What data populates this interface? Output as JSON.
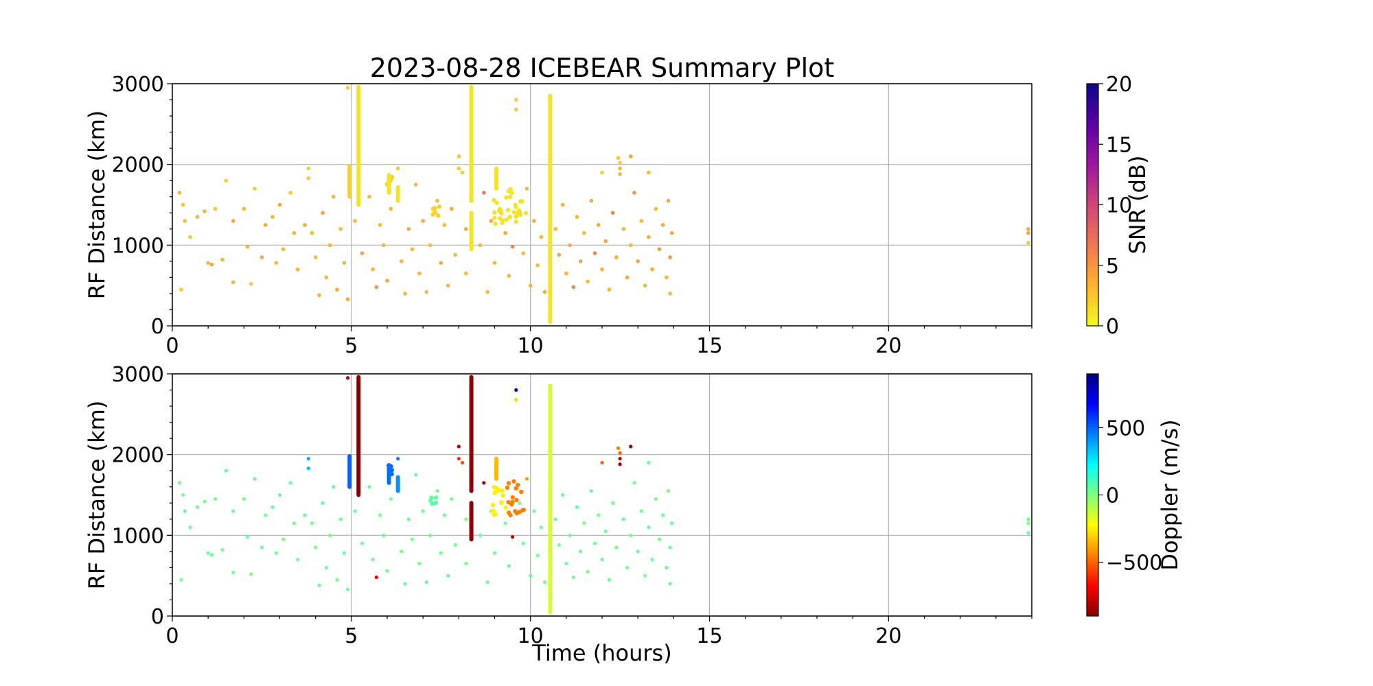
{
  "chart_data": {
    "type": "scatter",
    "title": "2023-08-28 ICEBEAR Summary Plot",
    "xlabel": "Time (hours)",
    "xlim": [
      0,
      24
    ],
    "x_ticks": [
      0,
      5,
      10,
      15,
      20
    ],
    "x_tick_labels": [
      "0",
      "5",
      "10",
      "15",
      "20"
    ],
    "grid": true,
    "panels": [
      {
        "ylabel": "RF Distance (km)",
        "ylim": [
          0,
          3000
        ],
        "y_ticks": [
          0,
          1000,
          2000,
          3000
        ],
        "y_tick_labels": [
          "0",
          "1000",
          "2000",
          "3000"
        ],
        "color_by": "snr",
        "colorbar": {
          "label": "SNR (dB)",
          "range": [
            0,
            20
          ],
          "ticks": [
            0,
            5,
            10,
            15,
            20
          ],
          "tick_labels": [
            "0",
            "5",
            "10",
            "15",
            "20"
          ],
          "colormap": "plasma_r",
          "stops": [
            "#f0f921",
            "#fdb42f",
            "#ed7953",
            "#cc4778",
            "#9c179e",
            "#5c01a6",
            "#0d0887"
          ]
        }
      },
      {
        "ylabel": "RF Distance (km)",
        "ylim": [
          0,
          3000
        ],
        "y_ticks": [
          0,
          1000,
          2000,
          3000
        ],
        "y_tick_labels": [
          "0",
          "1000",
          "2000",
          "3000"
        ],
        "color_by": "doppler",
        "colorbar": {
          "label": "Doppler (m/s)",
          "range": [
            -900,
            900
          ],
          "ticks": [
            -500,
            0,
            500
          ],
          "tick_labels": [
            "−500",
            "0",
            "500"
          ],
          "colormap": "jet_r",
          "stops": [
            "#800000",
            "#ff0000",
            "#ff8000",
            "#ffff00",
            "#80ff80",
            "#00ffff",
            "#0080ff",
            "#0000ff",
            "#000080"
          ]
        }
      }
    ],
    "points": [
      {
        "t": 0.2,
        "r": 1650,
        "snr": 3,
        "dop": 30
      },
      {
        "t": 0.3,
        "r": 1500,
        "snr": 2,
        "dop": 20
      },
      {
        "t": 0.35,
        "r": 1300,
        "snr": 3,
        "dop": 40
      },
      {
        "t": 0.25,
        "r": 450,
        "snr": 2,
        "dop": 30
      },
      {
        "t": 0.5,
        "r": 1100,
        "snr": 2,
        "dop": 10
      },
      {
        "t": 0.7,
        "r": 1350,
        "snr": 3,
        "dop": 50
      },
      {
        "t": 0.9,
        "r": 1420,
        "snr": 3,
        "dop": 20
      },
      {
        "t": 1.0,
        "r": 780,
        "snr": 3,
        "dop": 30
      },
      {
        "t": 1.1,
        "r": 760,
        "snr": 4,
        "dop": 40
      },
      {
        "t": 1.2,
        "r": 1450,
        "snr": 2,
        "dop": 10
      },
      {
        "t": 1.4,
        "r": 820,
        "snr": 3,
        "dop": 30
      },
      {
        "t": 1.5,
        "r": 1800,
        "snr": 2,
        "dop": 60
      },
      {
        "t": 1.7,
        "r": 540,
        "snr": 3,
        "dop": 20
      },
      {
        "t": 1.7,
        "r": 1300,
        "snr": 4,
        "dop": 30
      },
      {
        "t": 2.0,
        "r": 1450,
        "snr": 3,
        "dop": 20
      },
      {
        "t": 2.1,
        "r": 980,
        "snr": 3,
        "dop": 40
      },
      {
        "t": 2.2,
        "r": 520,
        "snr": 2,
        "dop": 10
      },
      {
        "t": 2.3,
        "r": 1700,
        "snr": 2,
        "dop": 50
      },
      {
        "t": 2.5,
        "r": 850,
        "snr": 4,
        "dop": 30
      },
      {
        "t": 2.6,
        "r": 1250,
        "snr": 4,
        "dop": 20
      },
      {
        "t": 2.8,
        "r": 1350,
        "snr": 3,
        "dop": 40
      },
      {
        "t": 2.9,
        "r": 780,
        "snr": 3,
        "dop": 30
      },
      {
        "t": 3.0,
        "r": 1500,
        "snr": 4,
        "dop": 30
      },
      {
        "t": 3.1,
        "r": 950,
        "snr": 3,
        "dop": 20
      },
      {
        "t": 3.3,
        "r": 1650,
        "snr": 2,
        "dop": 60
      },
      {
        "t": 3.4,
        "r": 1150,
        "snr": 3,
        "dop": 30
      },
      {
        "t": 3.5,
        "r": 700,
        "snr": 3,
        "dop": 20
      },
      {
        "t": 3.7,
        "r": 1250,
        "snr": 4,
        "dop": 40
      },
      {
        "t": 3.8,
        "r": 1950,
        "snr": 2,
        "dop": 380
      },
      {
        "t": 3.8,
        "r": 1830,
        "snr": 2,
        "dop": 350
      },
      {
        "t": 3.9,
        "r": 1150,
        "snr": 3,
        "dop": 30
      },
      {
        "t": 4.0,
        "r": 850,
        "snr": 3,
        "dop": 20
      },
      {
        "t": 4.1,
        "r": 380,
        "snr": 3,
        "dop": 30
      },
      {
        "t": 4.2,
        "r": 1400,
        "snr": 4,
        "dop": 40
      },
      {
        "t": 4.3,
        "r": 600,
        "snr": 3,
        "dop": 30
      },
      {
        "t": 4.4,
        "r": 1000,
        "snr": 3,
        "dop": 20
      },
      {
        "t": 4.5,
        "r": 1600,
        "snr": 3,
        "dop": 50
      },
      {
        "t": 4.6,
        "r": 450,
        "snr": 4,
        "dop": 30
      },
      {
        "t": 4.7,
        "r": 1200,
        "snr": 3,
        "dop": 20
      },
      {
        "t": 4.8,
        "r": 780,
        "snr": 3,
        "dop": 40
      },
      {
        "t": 4.9,
        "r": 330,
        "snr": 4,
        "dop": 30
      },
      {
        "t": 4.9,
        "r": 2950,
        "snr": 2,
        "dop": -850
      },
      {
        "t": 5.1,
        "r": 1300,
        "snr": 3,
        "dop": 30
      },
      {
        "t": 5.3,
        "r": 900,
        "snr": 4,
        "dop": 20
      },
      {
        "t": 5.5,
        "r": 1600,
        "snr": 3,
        "dop": 50
      },
      {
        "t": 5.6,
        "r": 700,
        "snr": 3,
        "dop": 30
      },
      {
        "t": 5.7,
        "r": 480,
        "snr": 5,
        "dop": -700
      },
      {
        "t": 5.8,
        "r": 1250,
        "snr": 3,
        "dop": 20
      },
      {
        "t": 5.9,
        "r": 1000,
        "snr": 3,
        "dop": 40
      },
      {
        "t": 6.0,
        "r": 560,
        "snr": 4,
        "dop": 30
      },
      {
        "t": 6.1,
        "r": 1450,
        "snr": 3,
        "dop": 20
      },
      {
        "t": 6.3,
        "r": 1950,
        "snr": 2,
        "dop": 450
      },
      {
        "t": 6.4,
        "r": 800,
        "snr": 3,
        "dop": 30
      },
      {
        "t": 6.5,
        "r": 400,
        "snr": 3,
        "dop": 40
      },
      {
        "t": 6.6,
        "r": 1200,
        "snr": 4,
        "dop": 30
      },
      {
        "t": 6.7,
        "r": 950,
        "snr": 3,
        "dop": 20
      },
      {
        "t": 6.8,
        "r": 1750,
        "snr": 3,
        "dop": 50
      },
      {
        "t": 6.9,
        "r": 650,
        "snr": 3,
        "dop": 30
      },
      {
        "t": 7.0,
        "r": 1300,
        "snr": 4,
        "dop": 20
      },
      {
        "t": 7.1,
        "r": 420,
        "snr": 3,
        "dop": 40
      },
      {
        "t": 7.2,
        "r": 1000,
        "snr": 3,
        "dop": 30
      },
      {
        "t": 7.4,
        "r": 1550,
        "snr": 3,
        "dop": 20
      },
      {
        "t": 7.5,
        "r": 780,
        "snr": 4,
        "dop": 30
      },
      {
        "t": 7.6,
        "r": 1250,
        "snr": 3,
        "dop": 40
      },
      {
        "t": 7.7,
        "r": 500,
        "snr": 3,
        "dop": 30
      },
      {
        "t": 7.8,
        "r": 1450,
        "snr": 4,
        "dop": 20
      },
      {
        "t": 7.9,
        "r": 880,
        "snr": 3,
        "dop": 30
      },
      {
        "t": 8.0,
        "r": 2100,
        "snr": 2,
        "dop": -820
      },
      {
        "t": 8.0,
        "r": 1950,
        "snr": 2,
        "dop": -600
      },
      {
        "t": 8.1,
        "r": 1900,
        "snr": 2,
        "dop": -550
      },
      {
        "t": 8.2,
        "r": 650,
        "snr": 3,
        "dop": 30
      },
      {
        "t": 8.2,
        "r": 1200,
        "snr": 4,
        "dop": 20
      },
      {
        "t": 8.6,
        "r": 1000,
        "snr": 3,
        "dop": 40
      },
      {
        "t": 8.7,
        "r": 1650,
        "snr": 7,
        "dop": -850
      },
      {
        "t": 8.8,
        "r": 420,
        "snr": 3,
        "dop": 30
      },
      {
        "t": 8.9,
        "r": 1300,
        "snr": 4,
        "dop": 20
      },
      {
        "t": 9.0,
        "r": 780,
        "snr": 3,
        "dop": 30
      },
      {
        "t": 9.3,
        "r": 1150,
        "snr": 4,
        "dop": 40
      },
      {
        "t": 9.4,
        "r": 620,
        "snr": 3,
        "dop": 30
      },
      {
        "t": 9.5,
        "r": 980,
        "snr": 6,
        "dop": -800
      },
      {
        "t": 9.6,
        "r": 2800,
        "snr": 2,
        "dop": 850
      },
      {
        "t": 9.6,
        "r": 2680,
        "snr": 2,
        "dop": -300
      },
      {
        "t": 9.7,
        "r": 1400,
        "snr": 3,
        "dop": 20
      },
      {
        "t": 9.8,
        "r": 900,
        "snr": 3,
        "dop": 30
      },
      {
        "t": 9.9,
        "r": 1700,
        "snr": 3,
        "dop": -400
      },
      {
        "t": 10.0,
        "r": 500,
        "snr": 3,
        "dop": 40
      },
      {
        "t": 10.1,
        "r": 1300,
        "snr": 4,
        "dop": 30
      },
      {
        "t": 10.2,
        "r": 750,
        "snr": 3,
        "dop": 20
      },
      {
        "t": 10.3,
        "r": 1100,
        "snr": 3,
        "dop": 30
      },
      {
        "t": 10.4,
        "r": 420,
        "snr": 4,
        "dop": 40
      },
      {
        "t": 10.7,
        "r": 1200,
        "snr": 3,
        "dop": 30
      },
      {
        "t": 10.8,
        "r": 880,
        "snr": 4,
        "dop": 20
      },
      {
        "t": 10.9,
        "r": 1500,
        "snr": 3,
        "dop": 40
      },
      {
        "t": 11.0,
        "r": 650,
        "snr": 3,
        "dop": 30
      },
      {
        "t": 11.1,
        "r": 1000,
        "snr": 4,
        "dop": 20
      },
      {
        "t": 11.2,
        "r": 480,
        "snr": 6,
        "dop": 30
      },
      {
        "t": 11.3,
        "r": 1350,
        "snr": 3,
        "dop": 40
      },
      {
        "t": 11.4,
        "r": 800,
        "snr": 4,
        "dop": 30
      },
      {
        "t": 11.5,
        "r": 1150,
        "snr": 3,
        "dop": 20
      },
      {
        "t": 11.6,
        "r": 550,
        "snr": 3,
        "dop": 30
      },
      {
        "t": 11.7,
        "r": 1550,
        "snr": 4,
        "dop": 40
      },
      {
        "t": 11.8,
        "r": 900,
        "snr": 6,
        "dop": 30
      },
      {
        "t": 11.9,
        "r": 1250,
        "snr": 4,
        "dop": 20
      },
      {
        "t": 12.0,
        "r": 700,
        "snr": 3,
        "dop": 30
      },
      {
        "t": 12.0,
        "r": 1900,
        "snr": 2,
        "dop": -500
      },
      {
        "t": 12.1,
        "r": 1050,
        "snr": 4,
        "dop": 40
      },
      {
        "t": 12.2,
        "r": 450,
        "snr": 3,
        "dop": 30
      },
      {
        "t": 12.3,
        "r": 1400,
        "snr": 6,
        "dop": 20
      },
      {
        "t": 12.4,
        "r": 850,
        "snr": 4,
        "dop": 30
      },
      {
        "t": 12.45,
        "r": 2080,
        "snr": 2,
        "dop": -450
      },
      {
        "t": 12.5,
        "r": 2020,
        "snr": 2,
        "dop": -500
      },
      {
        "t": 12.5,
        "r": 1950,
        "snr": 3,
        "dop": -800
      },
      {
        "t": 12.5,
        "r": 1880,
        "snr": 3,
        "dop": -850
      },
      {
        "t": 12.6,
        "r": 1200,
        "snr": 3,
        "dop": 40
      },
      {
        "t": 12.7,
        "r": 600,
        "snr": 4,
        "dop": 30
      },
      {
        "t": 12.8,
        "r": 2100,
        "snr": 4,
        "dop": -850
      },
      {
        "t": 12.8,
        "r": 1000,
        "snr": 3,
        "dop": 20
      },
      {
        "t": 12.9,
        "r": 1650,
        "snr": 5,
        "dop": 30
      },
      {
        "t": 13.0,
        "r": 800,
        "snr": 4,
        "dop": 40
      },
      {
        "t": 13.1,
        "r": 1300,
        "snr": 3,
        "dop": 30
      },
      {
        "t": 13.2,
        "r": 500,
        "snr": 3,
        "dop": 20
      },
      {
        "t": 13.3,
        "r": 1900,
        "snr": 3,
        "dop": 30
      },
      {
        "t": 13.3,
        "r": 1100,
        "snr": 4,
        "dop": 40
      },
      {
        "t": 13.4,
        "r": 700,
        "snr": 4,
        "dop": 30
      },
      {
        "t": 13.5,
        "r": 1450,
        "snr": 3,
        "dop": 20
      },
      {
        "t": 13.6,
        "r": 950,
        "snr": 5,
        "dop": 30
      },
      {
        "t": 13.7,
        "r": 1250,
        "snr": 4,
        "dop": 40
      },
      {
        "t": 13.8,
        "r": 600,
        "snr": 3,
        "dop": 30
      },
      {
        "t": 13.85,
        "r": 1550,
        "snr": 4,
        "dop": 20
      },
      {
        "t": 13.9,
        "r": 850,
        "snr": 5,
        "dop": 30
      },
      {
        "t": 13.95,
        "r": 1150,
        "snr": 4,
        "dop": 40
      },
      {
        "t": 13.9,
        "r": 400,
        "snr": 3,
        "dop": 30
      },
      {
        "t": 23.9,
        "r": 1200,
        "snr": 4,
        "dop": 30
      },
      {
        "t": 23.9,
        "r": 1150,
        "snr": 4,
        "dop": 20
      },
      {
        "t": 23.9,
        "r": 1030,
        "snr": 2,
        "dop": 30
      }
    ],
    "streaks": [
      {
        "t": 4.95,
        "r_from": 1600,
        "r_to": 1980,
        "snr": 2,
        "dop": 500
      },
      {
        "t": 5.2,
        "r_from": 1500,
        "r_to": 2960,
        "snr": 1,
        "dop": -880
      },
      {
        "t": 8.35,
        "r_from": 1550,
        "r_to": 2960,
        "snr": 1,
        "dop": -880
      },
      {
        "t": 8.35,
        "r_from": 950,
        "r_to": 1400,
        "snr": 1,
        "dop": -880
      },
      {
        "t": 10.55,
        "r_from": 50,
        "r_to": 2850,
        "snr": 1,
        "dop": -150
      },
      {
        "t": 9.05,
        "r_from": 1700,
        "r_to": 1950,
        "snr": 1,
        "dop": -350
      },
      {
        "t": 6.05,
        "r_from": 1650,
        "r_to": 1870,
        "snr": 1,
        "dop": 480
      },
      {
        "t": 6.3,
        "r_from": 1550,
        "r_to": 1720,
        "snr": 1,
        "dop": 420
      }
    ],
    "clusters": [
      {
        "t0": 8.95,
        "t1": 9.35,
        "r0": 1250,
        "r1": 1600,
        "n": 14,
        "snr": 1,
        "dop": -250
      },
      {
        "t0": 9.35,
        "t1": 9.9,
        "r0": 1250,
        "r1": 1700,
        "n": 18,
        "snr": 1,
        "dop": -450
      },
      {
        "t0": 7.2,
        "t1": 7.5,
        "r0": 1350,
        "r1": 1480,
        "n": 6,
        "snr": 2,
        "dop": 60
      },
      {
        "t0": 5.95,
        "t1": 6.15,
        "r0": 1680,
        "r1": 1870,
        "n": 6,
        "snr": 2,
        "dop": 480
      }
    ]
  }
}
